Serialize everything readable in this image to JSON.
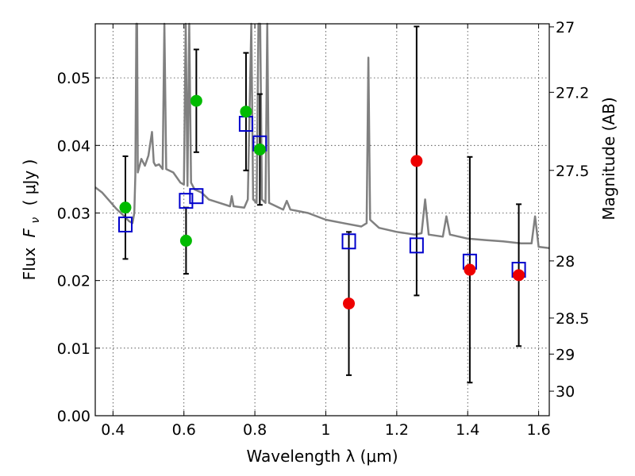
{
  "chart_data": {
    "type": "scatter",
    "xlabel": "Wavelength  λ (μm)",
    "ylabel": "Flux  F_ν  ( μJy )",
    "ylabel_parts": {
      "pre": "Flux ",
      "var": "F",
      "sub": "ν",
      "unit": "( μJy )"
    },
    "y2label": "Magnitude (AB)",
    "xlim": [
      0.35,
      1.63
    ],
    "ylim": [
      0.0,
      0.058
    ],
    "grid": true,
    "x_ticks": [
      {
        "value": 0.4,
        "label": "0.4"
      },
      {
        "value": 0.6,
        "label": "0.6"
      },
      {
        "value": 0.8,
        "label": "0.8"
      },
      {
        "value": 1.0,
        "label": "1"
      },
      {
        "value": 1.2,
        "label": "1.2"
      },
      {
        "value": 1.4,
        "label": "1.4"
      },
      {
        "value": 1.6,
        "label": "1.6"
      }
    ],
    "y_ticks": [
      {
        "value": 0.0,
        "label": "0.00"
      },
      {
        "value": 0.01,
        "label": "0.01"
      },
      {
        "value": 0.02,
        "label": "0.02"
      },
      {
        "value": 0.03,
        "label": "0.03"
      },
      {
        "value": 0.04,
        "label": "0.04"
      },
      {
        "value": 0.05,
        "label": "0.05"
      }
    ],
    "y2_ticks": [
      {
        "mag": 27,
        "label": "27"
      },
      {
        "mag": 27.2,
        "label": "27.2"
      },
      {
        "mag": 27.5,
        "label": "27.5"
      },
      {
        "mag": 28,
        "label": "28"
      },
      {
        "mag": 28.5,
        "label": "28.5"
      },
      {
        "mag": 29,
        "label": "29"
      },
      {
        "mag": 30,
        "label": "30"
      }
    ],
    "colors": {
      "observed_optical": "#00bb00",
      "observed_nir": "#ee0000",
      "model_points": "#0000cc",
      "spectrum": "#808080"
    },
    "observed_optical": [
      {
        "x": 0.435,
        "y": 0.0308,
        "err": 0.0076
      },
      {
        "x": 0.606,
        "y": 0.0259,
        "err": 0.0049
      },
      {
        "x": 0.635,
        "y": 0.0466,
        "err": 0.0076
      },
      {
        "x": 0.775,
        "y": 0.045,
        "err": 0.0087
      },
      {
        "x": 0.814,
        "y": 0.0394,
        "err": 0.0082
      }
    ],
    "observed_nir": [
      {
        "x": 1.065,
        "y": 0.0166,
        "err": 0.0106
      },
      {
        "x": 1.256,
        "y": 0.0377,
        "err": 0.0199
      },
      {
        "x": 1.406,
        "y": 0.0216,
        "err": 0.0167
      },
      {
        "x": 1.544,
        "y": 0.0208,
        "err": 0.0105
      }
    ],
    "model_points": [
      {
        "x": 0.435,
        "y": 0.0283
      },
      {
        "x": 0.606,
        "y": 0.0318
      },
      {
        "x": 0.635,
        "y": 0.0325
      },
      {
        "x": 0.775,
        "y": 0.0432
      },
      {
        "x": 0.814,
        "y": 0.0403
      },
      {
        "x": 1.065,
        "y": 0.0258
      },
      {
        "x": 1.256,
        "y": 0.0252
      },
      {
        "x": 1.406,
        "y": 0.0228
      },
      {
        "x": 1.544,
        "y": 0.0216
      }
    ],
    "spectrum": [
      [
        0.35,
        0.0338
      ],
      [
        0.37,
        0.033
      ],
      [
        0.39,
        0.0318
      ],
      [
        0.41,
        0.0306
      ],
      [
        0.43,
        0.0296
      ],
      [
        0.445,
        0.0288
      ],
      [
        0.455,
        0.0285
      ],
      [
        0.46,
        0.03
      ],
      [
        0.463,
        0.0355
      ],
      [
        0.466,
        0.058
      ],
      [
        0.468,
        0.058
      ],
      [
        0.47,
        0.036
      ],
      [
        0.48,
        0.038
      ],
      [
        0.49,
        0.037
      ],
      [
        0.5,
        0.0385
      ],
      [
        0.51,
        0.042
      ],
      [
        0.515,
        0.0375
      ],
      [
        0.52,
        0.037
      ],
      [
        0.53,
        0.0372
      ],
      [
        0.54,
        0.0365
      ],
      [
        0.545,
        0.058
      ],
      [
        0.55,
        0.0365
      ],
      [
        0.57,
        0.036
      ],
      [
        0.59,
        0.0345
      ],
      [
        0.6,
        0.0342
      ],
      [
        0.605,
        0.058
      ],
      [
        0.61,
        0.034
      ],
      [
        0.615,
        0.058
      ],
      [
        0.62,
        0.0345
      ],
      [
        0.63,
        0.0335
      ],
      [
        0.65,
        0.033
      ],
      [
        0.67,
        0.032
      ],
      [
        0.7,
        0.0315
      ],
      [
        0.73,
        0.031
      ],
      [
        0.735,
        0.0325
      ],
      [
        0.74,
        0.031
      ],
      [
        0.77,
        0.0308
      ],
      [
        0.78,
        0.032
      ],
      [
        0.79,
        0.058
      ],
      [
        0.795,
        0.032
      ],
      [
        0.805,
        0.0315
      ],
      [
        0.81,
        0.058
      ],
      [
        0.815,
        0.058
      ],
      [
        0.82,
        0.032
      ],
      [
        0.83,
        0.0315
      ],
      [
        0.835,
        0.058
      ],
      [
        0.84,
        0.0315
      ],
      [
        0.86,
        0.031
      ],
      [
        0.88,
        0.0305
      ],
      [
        0.89,
        0.0318
      ],
      [
        0.9,
        0.0305
      ],
      [
        0.95,
        0.03
      ],
      [
        1.0,
        0.029
      ],
      [
        1.05,
        0.0285
      ],
      [
        1.1,
        0.028
      ],
      [
        1.115,
        0.0285
      ],
      [
        1.12,
        0.053
      ],
      [
        1.125,
        0.029
      ],
      [
        1.15,
        0.0278
      ],
      [
        1.2,
        0.0272
      ],
      [
        1.25,
        0.0268
      ],
      [
        1.27,
        0.027
      ],
      [
        1.28,
        0.032
      ],
      [
        1.29,
        0.0268
      ],
      [
        1.33,
        0.0265
      ],
      [
        1.34,
        0.0295
      ],
      [
        1.35,
        0.0268
      ],
      [
        1.4,
        0.0262
      ],
      [
        1.45,
        0.026
      ],
      [
        1.5,
        0.0258
      ],
      [
        1.55,
        0.0255
      ],
      [
        1.58,
        0.0255
      ],
      [
        1.59,
        0.0295
      ],
      [
        1.6,
        0.025
      ],
      [
        1.63,
        0.0248
      ]
    ]
  }
}
